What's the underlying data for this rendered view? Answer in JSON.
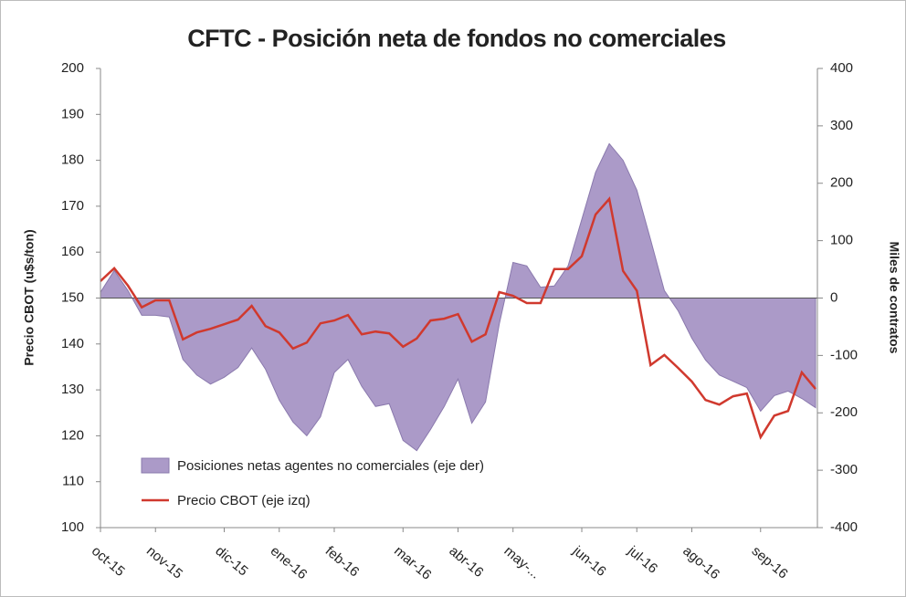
{
  "chart_data": {
    "type": "line",
    "title": "CFTC - Posición neta de fondos no comerciales",
    "ylabel": "Precio CBOT (u$s/ton)",
    "y2label": "Miles de contratos",
    "categories": [
      "oct-15",
      null,
      null,
      null,
      "nov-15",
      null,
      null,
      null,
      null,
      "dic-15",
      null,
      null,
      null,
      "ene-16",
      null,
      null,
      null,
      "feb-16",
      null,
      null,
      null,
      null,
      "mar-16",
      null,
      null,
      null,
      "abr-16",
      null,
      null,
      null,
      "may-...",
      null,
      null,
      null,
      null,
      "jun-16",
      null,
      null,
      null,
      "jul-16",
      null,
      null,
      null,
      "ago-16",
      null,
      null,
      null,
      null,
      "sep-16",
      null,
      null,
      null,
      null
    ],
    "series": [
      {
        "name": "Posiciones netas agentes no comerciales (eje der)",
        "type": "area",
        "axis": "y2",
        "color": "#ab9ac8",
        "values": [
          10,
          48,
          13,
          -30,
          -30,
          -33,
          -107,
          -134,
          -150,
          -138,
          -121,
          -87,
          -124,
          -178,
          -216,
          -240,
          -207,
          -130,
          -107,
          -154,
          -189,
          -184,
          -248,
          -266,
          -229,
          -189,
          -141,
          -218,
          -181,
          -45,
          62,
          56,
          19,
          21,
          56,
          137,
          219,
          269,
          240,
          188,
          102,
          13,
          -22,
          -70,
          -108,
          -134,
          -145,
          -156,
          -197,
          -170,
          -162,
          -175,
          -191
        ]
      },
      {
        "name": "Precio CBOT (eje izq)",
        "type": "line",
        "axis": "y",
        "color": "#d0392e",
        "values": [
          153.7,
          156.5,
          152.7,
          148,
          149.5,
          149.5,
          141,
          142.5,
          143.3,
          144.3,
          145.3,
          148.3,
          143.9,
          142.5,
          139,
          140.3,
          144.5,
          145.1,
          146.3,
          142.1,
          142.7,
          142.3,
          139.4,
          141.2,
          145.1,
          145.5,
          146.5,
          140.5,
          142.1,
          151.3,
          150.5,
          148.9,
          148.9,
          156.3,
          156.3,
          159.1,
          168.2,
          171.6,
          155.9,
          151.6,
          135.4,
          137.6,
          134.8,
          131.8,
          127.8,
          126.8,
          128.6,
          129.2,
          119.7,
          124.4,
          125.4,
          133.8,
          130.2
        ]
      }
    ],
    "ylim": [
      100,
      200
    ],
    "yticks": [
      100,
      110,
      120,
      130,
      140,
      150,
      160,
      170,
      180,
      190,
      200
    ],
    "y2lim": [
      -400,
      400
    ],
    "y2ticks": [
      -400,
      -300,
      -200,
      -100,
      0,
      100,
      200,
      300,
      400
    ],
    "legend": "lower left"
  }
}
